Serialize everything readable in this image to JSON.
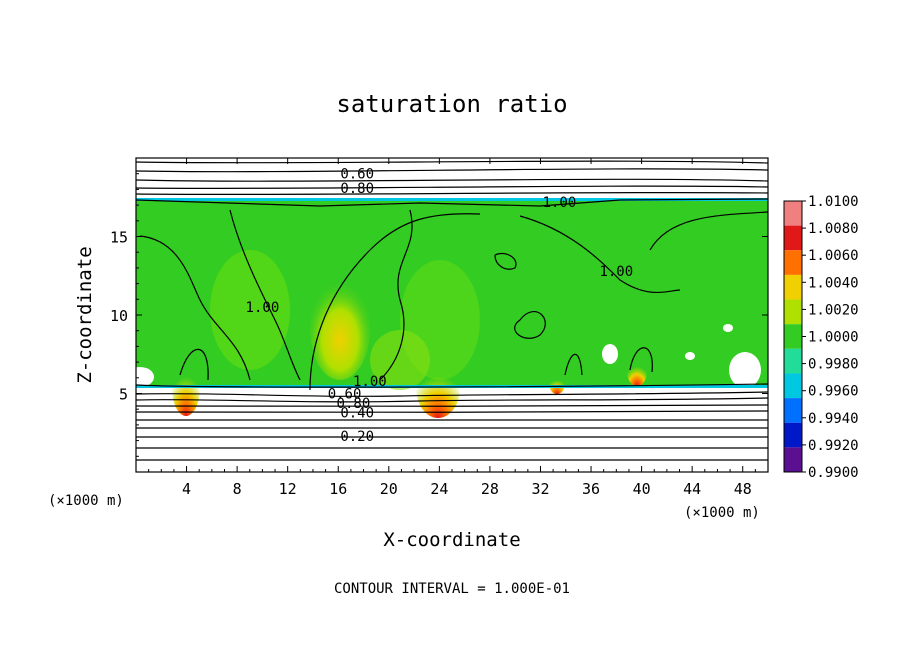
{
  "chart_data": {
    "type": "heatmap",
    "title": "saturation ratio",
    "xlabel": "X-coordinate",
    "ylabel": "Z-coordinate",
    "x_unit": "(×1000 m)",
    "x_ticks": [
      4,
      8,
      12,
      16,
      20,
      24,
      28,
      32,
      36,
      40,
      44,
      48
    ],
    "y_ticks": [
      5,
      10,
      15
    ],
    "xlim": [
      0,
      50
    ],
    "ylim": [
      0,
      20
    ],
    "footer": "CONTOUR INTERVAL = 1.000E-01",
    "colorbar": {
      "levels": [
        "1.0100",
        "1.0080",
        "1.0060",
        "1.0040",
        "1.0020",
        "1.0000",
        "0.9980",
        "0.9960",
        "0.9940",
        "0.9920",
        "0.9900"
      ],
      "colors": [
        "#f08080",
        "#e01818",
        "#ff7000",
        "#f0d000",
        "#b0e000",
        "#33cc22",
        "#22dd99",
        "#00c8e0",
        "#0070ff",
        "#0018c8",
        "#5a1090"
      ]
    },
    "contour_labels": [
      {
        "text": "0.60",
        "x": 17.5,
        "y": 19.0
      },
      {
        "text": "0.80",
        "x": 17.5,
        "y": 18.1
      },
      {
        "text": "1.00",
        "x": 33.5,
        "y": 17.2
      },
      {
        "text": "1.00",
        "x": 38.0,
        "y": 12.8
      },
      {
        "text": "1.00",
        "x": 10.0,
        "y": 10.5
      },
      {
        "text": "1.00",
        "x": 18.5,
        "y": 5.8
      },
      {
        "text": "0.60",
        "x": 16.5,
        "y": 5.0
      },
      {
        "text": "0.80",
        "x": 17.2,
        "y": 4.4
      },
      {
        "text": "0.40",
        "x": 17.5,
        "y": 3.8
      },
      {
        "text": "0.20",
        "x": 17.5,
        "y": 2.3
      }
    ]
  }
}
